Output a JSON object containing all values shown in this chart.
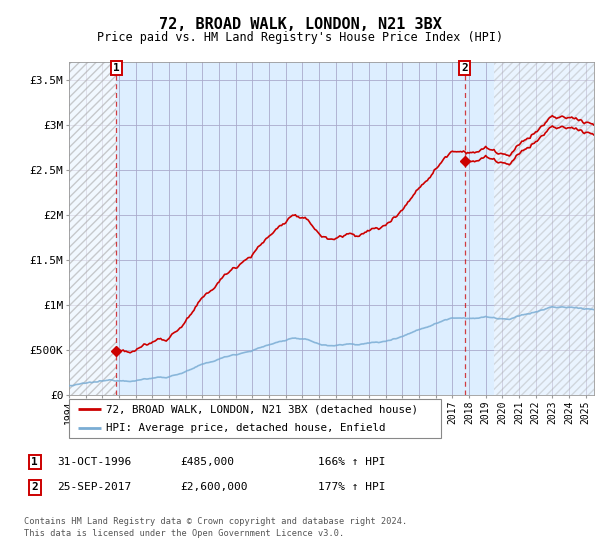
{
  "title": "72, BROAD WALK, LONDON, N21 3BX",
  "subtitle": "Price paid vs. HM Land Registry's House Price Index (HPI)",
  "ylabel_ticks": [
    "£0",
    "£500K",
    "£1M",
    "£1.5M",
    "£2M",
    "£2.5M",
    "£3M",
    "£3.5M"
  ],
  "ylabel_values": [
    0,
    500000,
    1000000,
    1500000,
    2000000,
    2500000,
    3000000,
    3500000
  ],
  "ylim": [
    0,
    3700000
  ],
  "xlim_start": 1994.0,
  "xlim_end": 2025.5,
  "sale1_x": 1996.83,
  "sale1_y": 485000,
  "sale2_x": 2017.73,
  "sale2_y": 2600000,
  "sale1_date": "31-OCT-1996",
  "sale1_price": "£485,000",
  "sale1_hpi": "166% ↑ HPI",
  "sale2_date": "25-SEP-2017",
  "sale2_price": "£2,600,000",
  "sale2_hpi": "177% ↑ HPI",
  "hpi_color": "#7aadd4",
  "price_color": "#cc0000",
  "bg_color": "#ddeeff",
  "legend_label1": "72, BROAD WALK, LONDON, N21 3BX (detached house)",
  "legend_label2": "HPI: Average price, detached house, Enfield",
  "footer1": "Contains HM Land Registry data © Crown copyright and database right 2024.",
  "footer2": "This data is licensed under the Open Government Licence v3.0.",
  "grid_color": "#aaaacc",
  "annotation_box_color": "#cc0000",
  "hatch_color": "#aaaaaa"
}
